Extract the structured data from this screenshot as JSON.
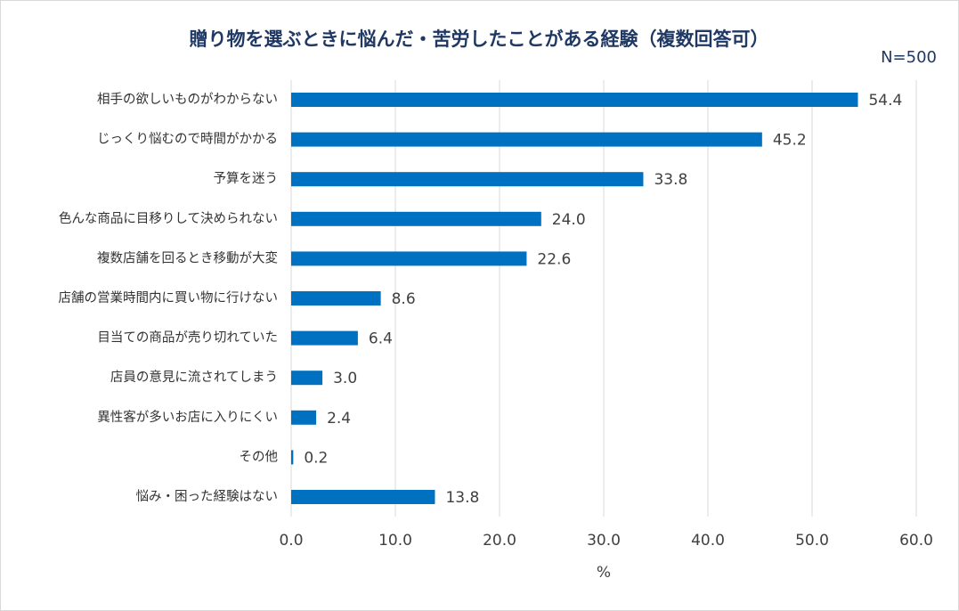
{
  "chart_data": {
    "type": "hbar",
    "title": "贈り物を選ぶときに悩んだ・苦労したことがある経験（複数回答可）",
    "note": "N=500",
    "xlabel": "%",
    "categories": [
      "相手の欲しいものがわからない",
      "じっくり悩むので時間がかかる",
      "予算を迷う",
      "色んな商品に目移りして決められない",
      "複数店舗を回るとき移動が大変",
      "店舗の営業時間内に買い物に行けない",
      "目当ての商品が売り切れていた",
      "店員の意見に流されてしまう",
      "異性客が多いお店に入りにくい",
      "その他",
      "悩み・困った経験はない"
    ],
    "values": [
      54.4,
      45.2,
      33.8,
      24,
      22.6,
      8.6,
      6.4,
      3,
      2.4,
      0.2,
      13.8
    ],
    "value_labels": [
      "54.4",
      "45.2",
      "33.8",
      "24.0",
      "22.6",
      "8.6",
      "6.4",
      "3.0",
      "2.4",
      "0.2",
      "13.8"
    ],
    "color": "#0070c0",
    "xlim": [
      0,
      60
    ],
    "xticks": [
      {
        "value": 0,
        "label": "0.0"
      },
      {
        "value": 10,
        "label": "10.0"
      },
      {
        "value": 20,
        "label": "20.0"
      },
      {
        "value": 30,
        "label": "30.0"
      },
      {
        "value": 40,
        "label": "40.0"
      },
      {
        "value": 50,
        "label": "50.0"
      },
      {
        "value": 60,
        "label": "60.0"
      }
    ],
    "grid": true
  }
}
